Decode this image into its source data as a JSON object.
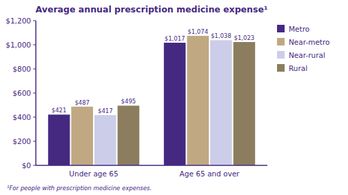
{
  "chart_data": {
    "type": "bar",
    "title": "Average annual prescription medicine expense¹",
    "footnote": "¹For people with prescription medicine expenses.",
    "categories": [
      "Under age 65",
      "Age 65 and over"
    ],
    "series": [
      {
        "name": "Metro",
        "color": "#452981",
        "values": [
          421,
          1017
        ],
        "value_labels": [
          "$421",
          "$1,017"
        ]
      },
      {
        "name": "Near-metro",
        "color": "#c0a882",
        "values": [
          487,
          1074
        ],
        "value_labels": [
          "$487",
          "$1,074"
        ]
      },
      {
        "name": "Near-rural",
        "color": "#cccde8",
        "values": [
          417,
          1038
        ],
        "value_labels": [
          "$417",
          "$1,038"
        ]
      },
      {
        "name": "Rural",
        "color": "#8b7d5e",
        "values": [
          495,
          1023
        ],
        "value_labels": [
          "$495",
          "$1,023"
        ]
      }
    ],
    "ylim": [
      0,
      1200
    ],
    "yticks": [
      {
        "value": 0,
        "label": "$0"
      },
      {
        "value": 200,
        "label": "$200"
      },
      {
        "value": 400,
        "label": "$400"
      },
      {
        "value": 600,
        "label": "$600"
      },
      {
        "value": 800,
        "label": "$800"
      },
      {
        "value": 1000,
        "label": "$1,000"
      },
      {
        "value": 1200,
        "label": "$1,200"
      }
    ],
    "grid": false,
    "legend": "right",
    "data_labels": true
  }
}
